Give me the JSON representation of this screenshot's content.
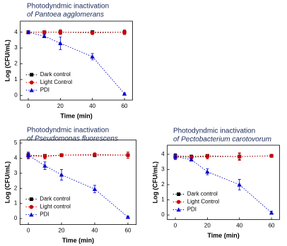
{
  "chart_data": [
    {
      "type": "line",
      "title": "Photodyndmic inactivation",
      "subtitle": "of Pantoea agglomerans",
      "xlabel": "Time (min)",
      "ylabel": "Log (CFU/mL)",
      "x": [
        0,
        10,
        20,
        40,
        60
      ],
      "xlim": [
        -5,
        65
      ],
      "xticks": [
        0,
        20,
        40,
        60
      ],
      "ylim": [
        -0.3,
        4.7
      ],
      "yticks": [
        0,
        1,
        2,
        3,
        4
      ],
      "series": [
        {
          "name": "Dark control",
          "color": "#000000",
          "marker": "square",
          "values": [
            4.0,
            4.0,
            4.0,
            4.0,
            4.0
          ],
          "errors": [
            0.1,
            0.1,
            0.15,
            0.1,
            0.1
          ]
        },
        {
          "name": "Light Control",
          "color": "#cc0000",
          "marker": "circle",
          "values": [
            4.0,
            4.0,
            4.0,
            3.95,
            4.0
          ],
          "errors": [
            0.1,
            0.1,
            0.15,
            0.1,
            0.15
          ]
        },
        {
          "name": "PDI",
          "color": "#0000cc",
          "marker": "triangle",
          "values": [
            4.0,
            3.75,
            3.3,
            2.45,
            0.1
          ],
          "errors": [
            0.1,
            0.1,
            0.4,
            0.2,
            0.05
          ]
        }
      ]
    },
    {
      "type": "line",
      "title": "Photodyndmic inactivation",
      "subtitle": "of Pseudomonas fluorescens",
      "xlabel": "Time (min)",
      "ylabel": "Log (CFU/mL)",
      "x": [
        0,
        10,
        20,
        40,
        60
      ],
      "xlim": [
        -5,
        65
      ],
      "xticks": [
        0,
        20,
        40,
        60
      ],
      "ylim": [
        -0.4,
        5.2
      ],
      "yticks": [
        0,
        1,
        2,
        3,
        4,
        5
      ],
      "series": [
        {
          "name": "Dark control",
          "color": "#000000",
          "marker": "square",
          "values": [
            4.2,
            4.15,
            4.2,
            4.2,
            4.2
          ],
          "errors": [
            0.15,
            0.1,
            0.1,
            0.1,
            0.2
          ]
        },
        {
          "name": "Light control",
          "color": "#cc0000",
          "marker": "circle",
          "values": [
            4.15,
            4.1,
            4.2,
            4.25,
            4.2
          ],
          "errors": [
            0.2,
            0.15,
            0.1,
            0.1,
            0.2
          ]
        },
        {
          "name": "PDI",
          "color": "#0000cc",
          "marker": "triangle",
          "values": [
            4.2,
            3.5,
            2.9,
            1.95,
            0.1
          ],
          "errors": [
            0.2,
            0.25,
            0.35,
            0.25,
            0.05
          ]
        }
      ]
    },
    {
      "type": "line",
      "title": "Photodyndmic inactivation",
      "subtitle": "of Pectobacterium carotovorum",
      "xlabel": "Time (min)",
      "ylabel": "Log (CFU/mL)",
      "x": [
        0,
        10,
        20,
        40,
        60
      ],
      "xlim": [
        -5,
        65
      ],
      "xticks": [
        0,
        20,
        40,
        60
      ],
      "ylim": [
        -0.3,
        4.6
      ],
      "yticks": [
        0,
        1,
        2,
        3,
        4
      ],
      "series": [
        {
          "name": "Dark control",
          "color": "#000000",
          "marker": "square",
          "values": [
            3.9,
            3.85,
            3.9,
            3.85,
            3.9
          ],
          "errors": [
            0.15,
            0.1,
            0.1,
            0.2,
            0.05
          ]
        },
        {
          "name": "Light Control",
          "color": "#cc0000",
          "marker": "circle",
          "values": [
            3.85,
            3.8,
            3.85,
            3.85,
            3.9
          ],
          "errors": [
            0.2,
            0.1,
            0.15,
            0.25,
            0.05
          ]
        },
        {
          "name": "PDI",
          "color": "#0000cc",
          "marker": "triangle",
          "values": [
            3.85,
            3.65,
            2.85,
            2.0,
            0.15
          ],
          "errors": [
            0.15,
            0.1,
            0.2,
            0.35,
            0.1
          ]
        }
      ]
    }
  ]
}
